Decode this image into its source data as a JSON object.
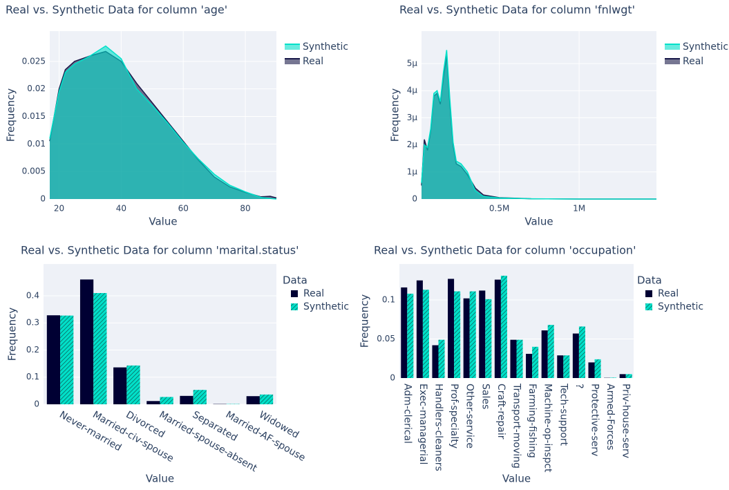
{
  "chart_data": [
    {
      "type": "area",
      "title": "Real vs. Synthetic Data for column 'age'",
      "x_label": "Value",
      "y_label": "Frequency",
      "xlim": [
        17,
        90
      ],
      "ylim": [
        0,
        0.0305
      ],
      "xticks": [
        20,
        40,
        60,
        80
      ],
      "yticks": [
        0,
        0.005,
        0.01,
        0.015,
        0.02,
        0.025
      ],
      "grid": true,
      "series": [
        {
          "name": "Synthetic",
          "color": "#01E0C9",
          "x": [
            17,
            20,
            22,
            25,
            30,
            35,
            40,
            45,
            50,
            55,
            60,
            65,
            70,
            75,
            80,
            85,
            88,
            90
          ],
          "values": [
            0.011,
            0.0195,
            0.023,
            0.0245,
            0.026,
            0.0278,
            0.0255,
            0.02,
            0.017,
            0.0138,
            0.0103,
            0.0072,
            0.0045,
            0.0025,
            0.0013,
            0.0003,
            0.0001,
            0
          ]
        },
        {
          "name": "Real",
          "color": "#1a1a4a",
          "x": [
            17,
            20,
            22,
            25,
            30,
            35,
            40,
            45,
            50,
            55,
            60,
            65,
            70,
            75,
            80,
            85,
            88,
            90
          ],
          "values": [
            0.0105,
            0.02,
            0.0235,
            0.025,
            0.026,
            0.0268,
            0.025,
            0.021,
            0.0175,
            0.014,
            0.0105,
            0.007,
            0.004,
            0.0022,
            0.0012,
            0.0004,
            0.0005,
            0.0002
          ]
        }
      ]
    },
    {
      "type": "area",
      "title": "Real vs. Synthetic Data for column 'fnlwgt'",
      "x_label": "Value",
      "y_label": "Frequency",
      "xlim": [
        12285,
        1484705
      ],
      "ylim": [
        0,
        6.2e-06
      ],
      "xticks": [
        {
          "value": 500000,
          "label": "0.5M"
        },
        {
          "value": 1000000,
          "label": "1M"
        }
      ],
      "yticks": [
        0,
        {
          "value": 1e-06,
          "label": "1μ"
        },
        {
          "value": 2e-06,
          "label": "2μ"
        },
        {
          "value": 3e-06,
          "label": "3μ"
        },
        {
          "value": 4e-06,
          "label": "4μ"
        },
        {
          "value": 5e-06,
          "label": "5μ"
        }
      ],
      "grid": true,
      "series": [
        {
          "name": "Synthetic",
          "color": "#01E0C9",
          "x": [
            12285,
            30000,
            50000,
            70000,
            90000,
            110000,
            130000,
            150000,
            170000,
            190000,
            210000,
            230000,
            260000,
            300000,
            350000,
            400000,
            500000,
            700000,
            1000000,
            1484705
          ],
          "values": [
            6e-07,
            2e-06,
            1.9e-06,
            2.6e-06,
            3.9e-06,
            4e-06,
            3.6e-06,
            4.7e-06,
            5.5e-06,
            3.7e-06,
            2.1e-06,
            1.4e-06,
            1.3e-06,
            1e-06,
            3e-07,
            1e-07,
            4e-08,
            1e-08,
            0,
            0
          ]
        },
        {
          "name": "Real",
          "color": "#1a1a4a",
          "x": [
            12285,
            30000,
            50000,
            70000,
            90000,
            110000,
            130000,
            150000,
            170000,
            190000,
            210000,
            230000,
            260000,
            300000,
            350000,
            400000,
            500000,
            700000,
            1000000,
            1484705
          ],
          "values": [
            5e-07,
            2.2e-06,
            1.8e-06,
            2.5e-06,
            3.8e-06,
            3.9e-06,
            3.5e-06,
            4.5e-06,
            5.3e-06,
            3.5e-06,
            2e-06,
            1.3e-06,
            1.2e-06,
            9e-07,
            4e-07,
            1.5e-07,
            5e-08,
            1e-08,
            0,
            0
          ]
        }
      ]
    },
    {
      "type": "bar",
      "title": "Real vs. Synthetic Data for column 'marital.status'",
      "x_label": "Value",
      "y_label": "Frequency",
      "legend_title": "Data",
      "categories": [
        "Never-married",
        "Married-civ-spouse",
        "Divorced",
        "Married-spouse-absent",
        "Separated",
        "Married-AF-spouse",
        "Widowed"
      ],
      "ylim": [
        0,
        0.517
      ],
      "yticks": [
        0,
        0.1,
        0.2,
        0.3,
        0.4
      ],
      "grid": true,
      "series": [
        {
          "name": "Real",
          "color": "#000033",
          "values": [
            0.328,
            0.46,
            0.136,
            0.012,
            0.031,
            0.001,
            0.03
          ]
        },
        {
          "name": "Synthetic",
          "color": "#01E0C9",
          "pattern": "/",
          "values": [
            0.327,
            0.41,
            0.143,
            0.027,
            0.053,
            0.001,
            0.036
          ]
        }
      ]
    },
    {
      "type": "bar",
      "title": "Real vs. Synthetic Data for column 'occupation'",
      "x_label": "Value",
      "y_label": "Frequency",
      "legend_title": "Data",
      "categories": [
        "Adm-clerical",
        "Exec-managerial",
        "Handlers-cleaners",
        "Prof-specialty",
        "Other-service",
        "Sales",
        "Craft-repair",
        "Transport-moving",
        "Farming-fishing",
        "Machine-op-inspct",
        "Tech-support",
        "?",
        "Protective-serv",
        "Armed-Forces",
        "Priv-house-serv"
      ],
      "ylim": [
        0,
        0.146
      ],
      "yticks": [
        0,
        0.05,
        0.1
      ],
      "grid": true,
      "series": [
        {
          "name": "Real",
          "color": "#000033",
          "values": [
            0.116,
            0.125,
            0.042,
            0.127,
            0.102,
            0.112,
            0.126,
            0.049,
            0.031,
            0.061,
            0.029,
            0.057,
            0.02,
            0.0003,
            0.005
          ]
        },
        {
          "name": "Synthetic",
          "color": "#01E0C9",
          "pattern": "/",
          "values": [
            0.108,
            0.113,
            0.049,
            0.111,
            0.111,
            0.101,
            0.131,
            0.049,
            0.04,
            0.068,
            0.029,
            0.066,
            0.024,
            0.0005,
            0.005
          ]
        }
      ]
    }
  ]
}
